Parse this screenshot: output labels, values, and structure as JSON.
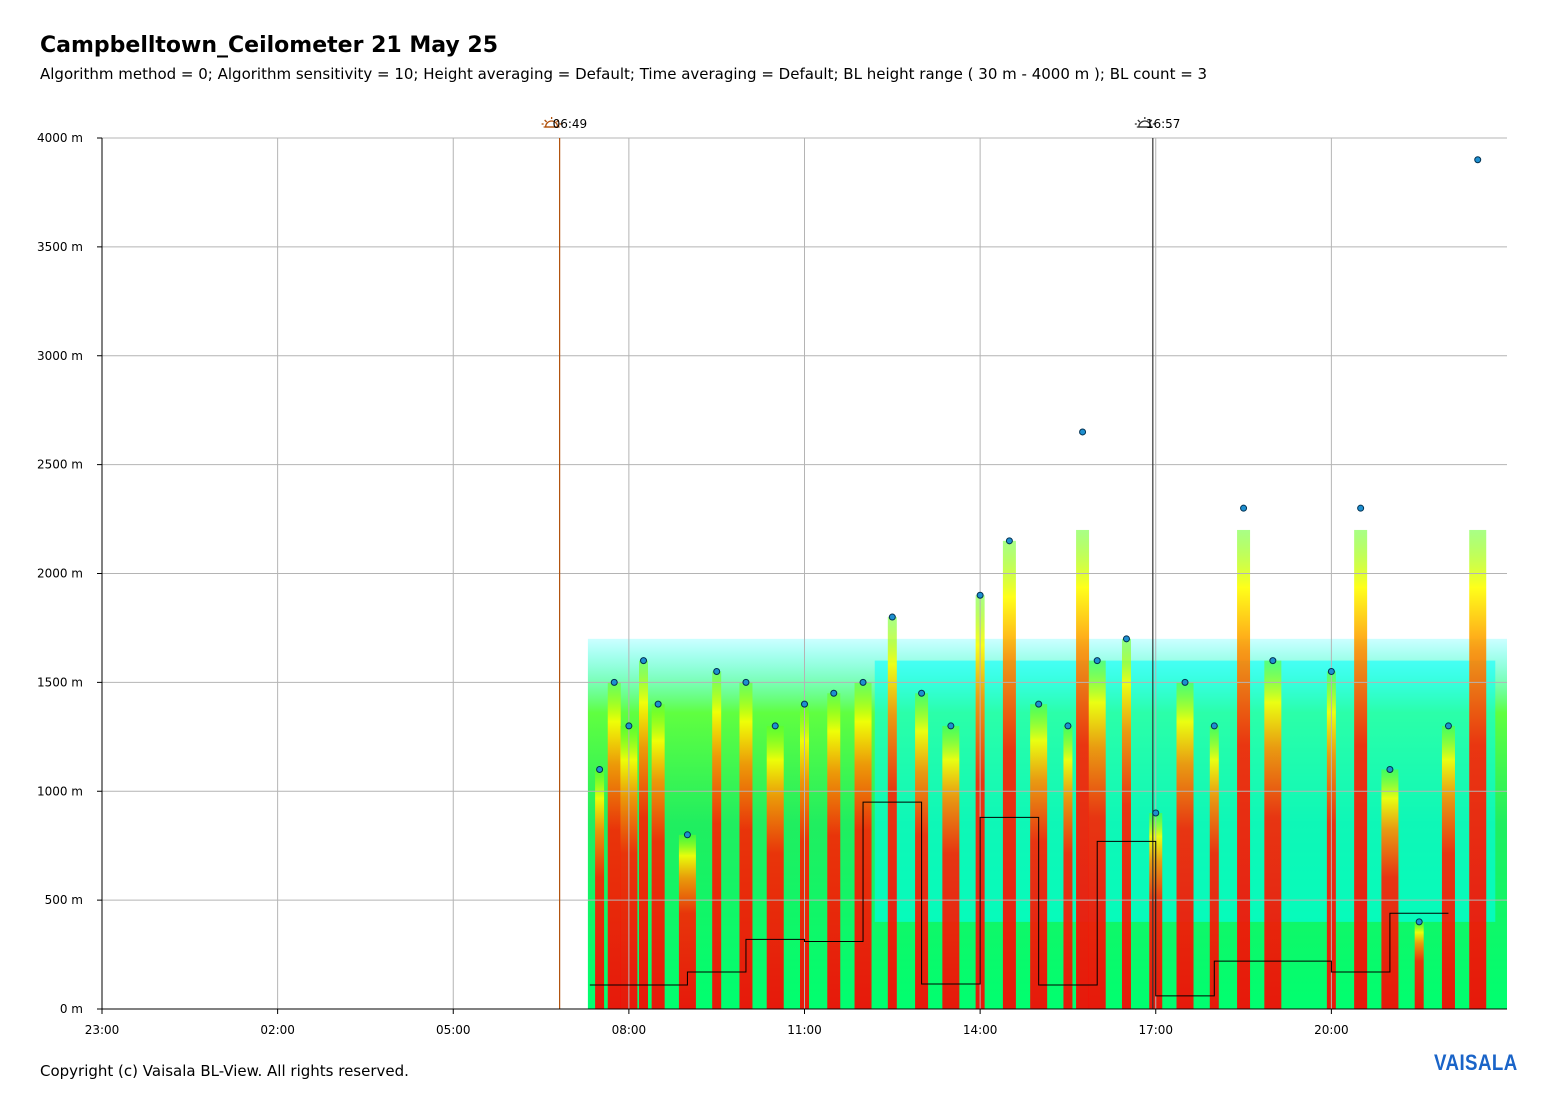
{
  "header": {
    "title": "Campbelltown_Ceilometer 21 May 25",
    "subtitle": "Algorithm method = 0; Algorithm sensitivity = 10; Height averaging = Default; Time averaging = Default; BL height range ( 30 m - 4000 m ); BL count = 3"
  },
  "footer": {
    "copyright": "Copyright (c) Vaisala BL-View. All rights reserved.",
    "brand": "VAISALA"
  },
  "colors": {
    "brand": "#1a64c8",
    "sunrise_line": "#b0500a",
    "sunset_line": "#333333",
    "bl_marker_fill": "#1e8fd0",
    "grid": "#b4b4b4",
    "backscatter_scale": [
      "#00ffff",
      "#00ff80",
      "#80ff00",
      "#ffff00",
      "#ff8000",
      "#ff0000"
    ]
  },
  "chart_data": {
    "type": "heatmap",
    "title": "Campbelltown_Ceilometer 21 May 25",
    "xlabel": "",
    "ylabel": "",
    "x_ticks": [
      "23:00",
      "02:00",
      "05:00",
      "08:00",
      "11:00",
      "14:00",
      "17:00",
      "20:00"
    ],
    "x_range_hours": [
      23,
      47
    ],
    "y_ticks": [
      "0 m",
      "500 m",
      "1000 m",
      "1500 m",
      "2000 m",
      "2500 m",
      "3000 m",
      "3500 m",
      "4000 m"
    ],
    "ylim": [
      0,
      4000
    ],
    "grid": true,
    "events": [
      {
        "name": "sunrise",
        "time": "06:49",
        "hour": 30.817
      },
      {
        "name": "sunset",
        "time": "16:57",
        "hour": 40.95
      }
    ],
    "data_start_hour": 31.3,
    "notes_backscatter": "Aerosol backscatter heatmap begins at about 07:20; strongest (red) layers up to ~1500-2200 m, with upper layers up to ~2800 m near 15:45 and cloud returns near 4000 m after 22:30.",
    "bl_height_estimates_m": [
      {
        "time": "07:30",
        "height": 1100
      },
      {
        "time": "07:45",
        "height": 1500
      },
      {
        "time": "08:00",
        "height": 1300
      },
      {
        "time": "08:15",
        "height": 1600
      },
      {
        "time": "08:30",
        "height": 1400
      },
      {
        "time": "09:00",
        "height": 800
      },
      {
        "time": "09:30",
        "height": 1550
      },
      {
        "time": "10:00",
        "height": 1500
      },
      {
        "time": "10:30",
        "height": 1300
      },
      {
        "time": "11:00",
        "height": 1400
      },
      {
        "time": "11:30",
        "height": 1450
      },
      {
        "time": "12:00",
        "height": 1500
      },
      {
        "time": "12:30",
        "height": 1800
      },
      {
        "time": "13:00",
        "height": 1450
      },
      {
        "time": "13:30",
        "height": 1300
      },
      {
        "time": "14:00",
        "height": 1900
      },
      {
        "time": "14:30",
        "height": 2150
      },
      {
        "time": "15:00",
        "height": 1400
      },
      {
        "time": "15:30",
        "height": 1300
      },
      {
        "time": "15:45",
        "height": 2650
      },
      {
        "time": "16:00",
        "height": 1600
      },
      {
        "time": "16:30",
        "height": 1700
      },
      {
        "time": "17:00",
        "height": 900
      },
      {
        "time": "17:30",
        "height": 1500
      },
      {
        "time": "18:00",
        "height": 1300
      },
      {
        "time": "18:30",
        "height": 2300
      },
      {
        "time": "19:00",
        "height": 1600
      },
      {
        "time": "20:00",
        "height": 1550
      },
      {
        "time": "20:30",
        "height": 2300
      },
      {
        "time": "21:00",
        "height": 1100
      },
      {
        "time": "21:30",
        "height": 400
      },
      {
        "time": "22:00",
        "height": 1300
      },
      {
        "time": "22:30",
        "height": 3900
      }
    ],
    "bl_step_line_m": [
      {
        "time": "07:20",
        "height": 110
      },
      {
        "time": "09:00",
        "height": 170
      },
      {
        "time": "10:00",
        "height": 320
      },
      {
        "time": "11:00",
        "height": 310
      },
      {
        "time": "12:00",
        "height": 950
      },
      {
        "time": "13:00",
        "height": 115
      },
      {
        "time": "14:00",
        "height": 880
      },
      {
        "time": "15:00",
        "height": 110
      },
      {
        "time": "16:00",
        "height": 770
      },
      {
        "time": "17:00",
        "height": 60
      },
      {
        "time": "18:00",
        "height": 220
      },
      {
        "time": "20:00",
        "height": 170
      },
      {
        "time": "21:00",
        "height": 440
      }
    ]
  }
}
